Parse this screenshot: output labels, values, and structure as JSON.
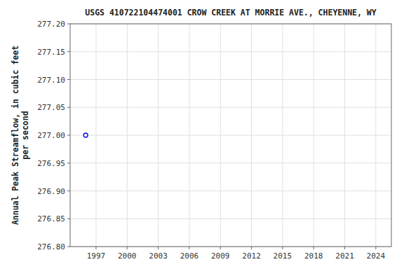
{
  "chart_data": {
    "type": "scatter",
    "title": "USGS 410722104474001 CROW CREEK AT MORRIE AVE., CHEYENNE, WY",
    "y_label": "Annual Peak Streamflow, in cubic feet\nper second",
    "x": [
      1996
    ],
    "values": [
      277.0
    ],
    "color": "blue",
    "marker": "open-circle",
    "xlim": [
      1994.5,
      2025.5
    ],
    "ylim": [
      276.8,
      277.2
    ],
    "xticks": [
      1997,
      2000,
      2003,
      2006,
      2009,
      2012,
      2015,
      2018,
      2021,
      2024
    ],
    "yticks": [
      {
        "value": 276.8,
        "label": "276.80"
      },
      276.85,
      {
        "value": 276.9,
        "label": "276.90"
      },
      276.95,
      {
        "value": 277.0,
        "label": "277.00"
      },
      277.05,
      {
        "value": 277.1,
        "label": "277.10"
      },
      277.15,
      {
        "value": 277.2,
        "label": "277.20"
      }
    ],
    "grid": true
  }
}
